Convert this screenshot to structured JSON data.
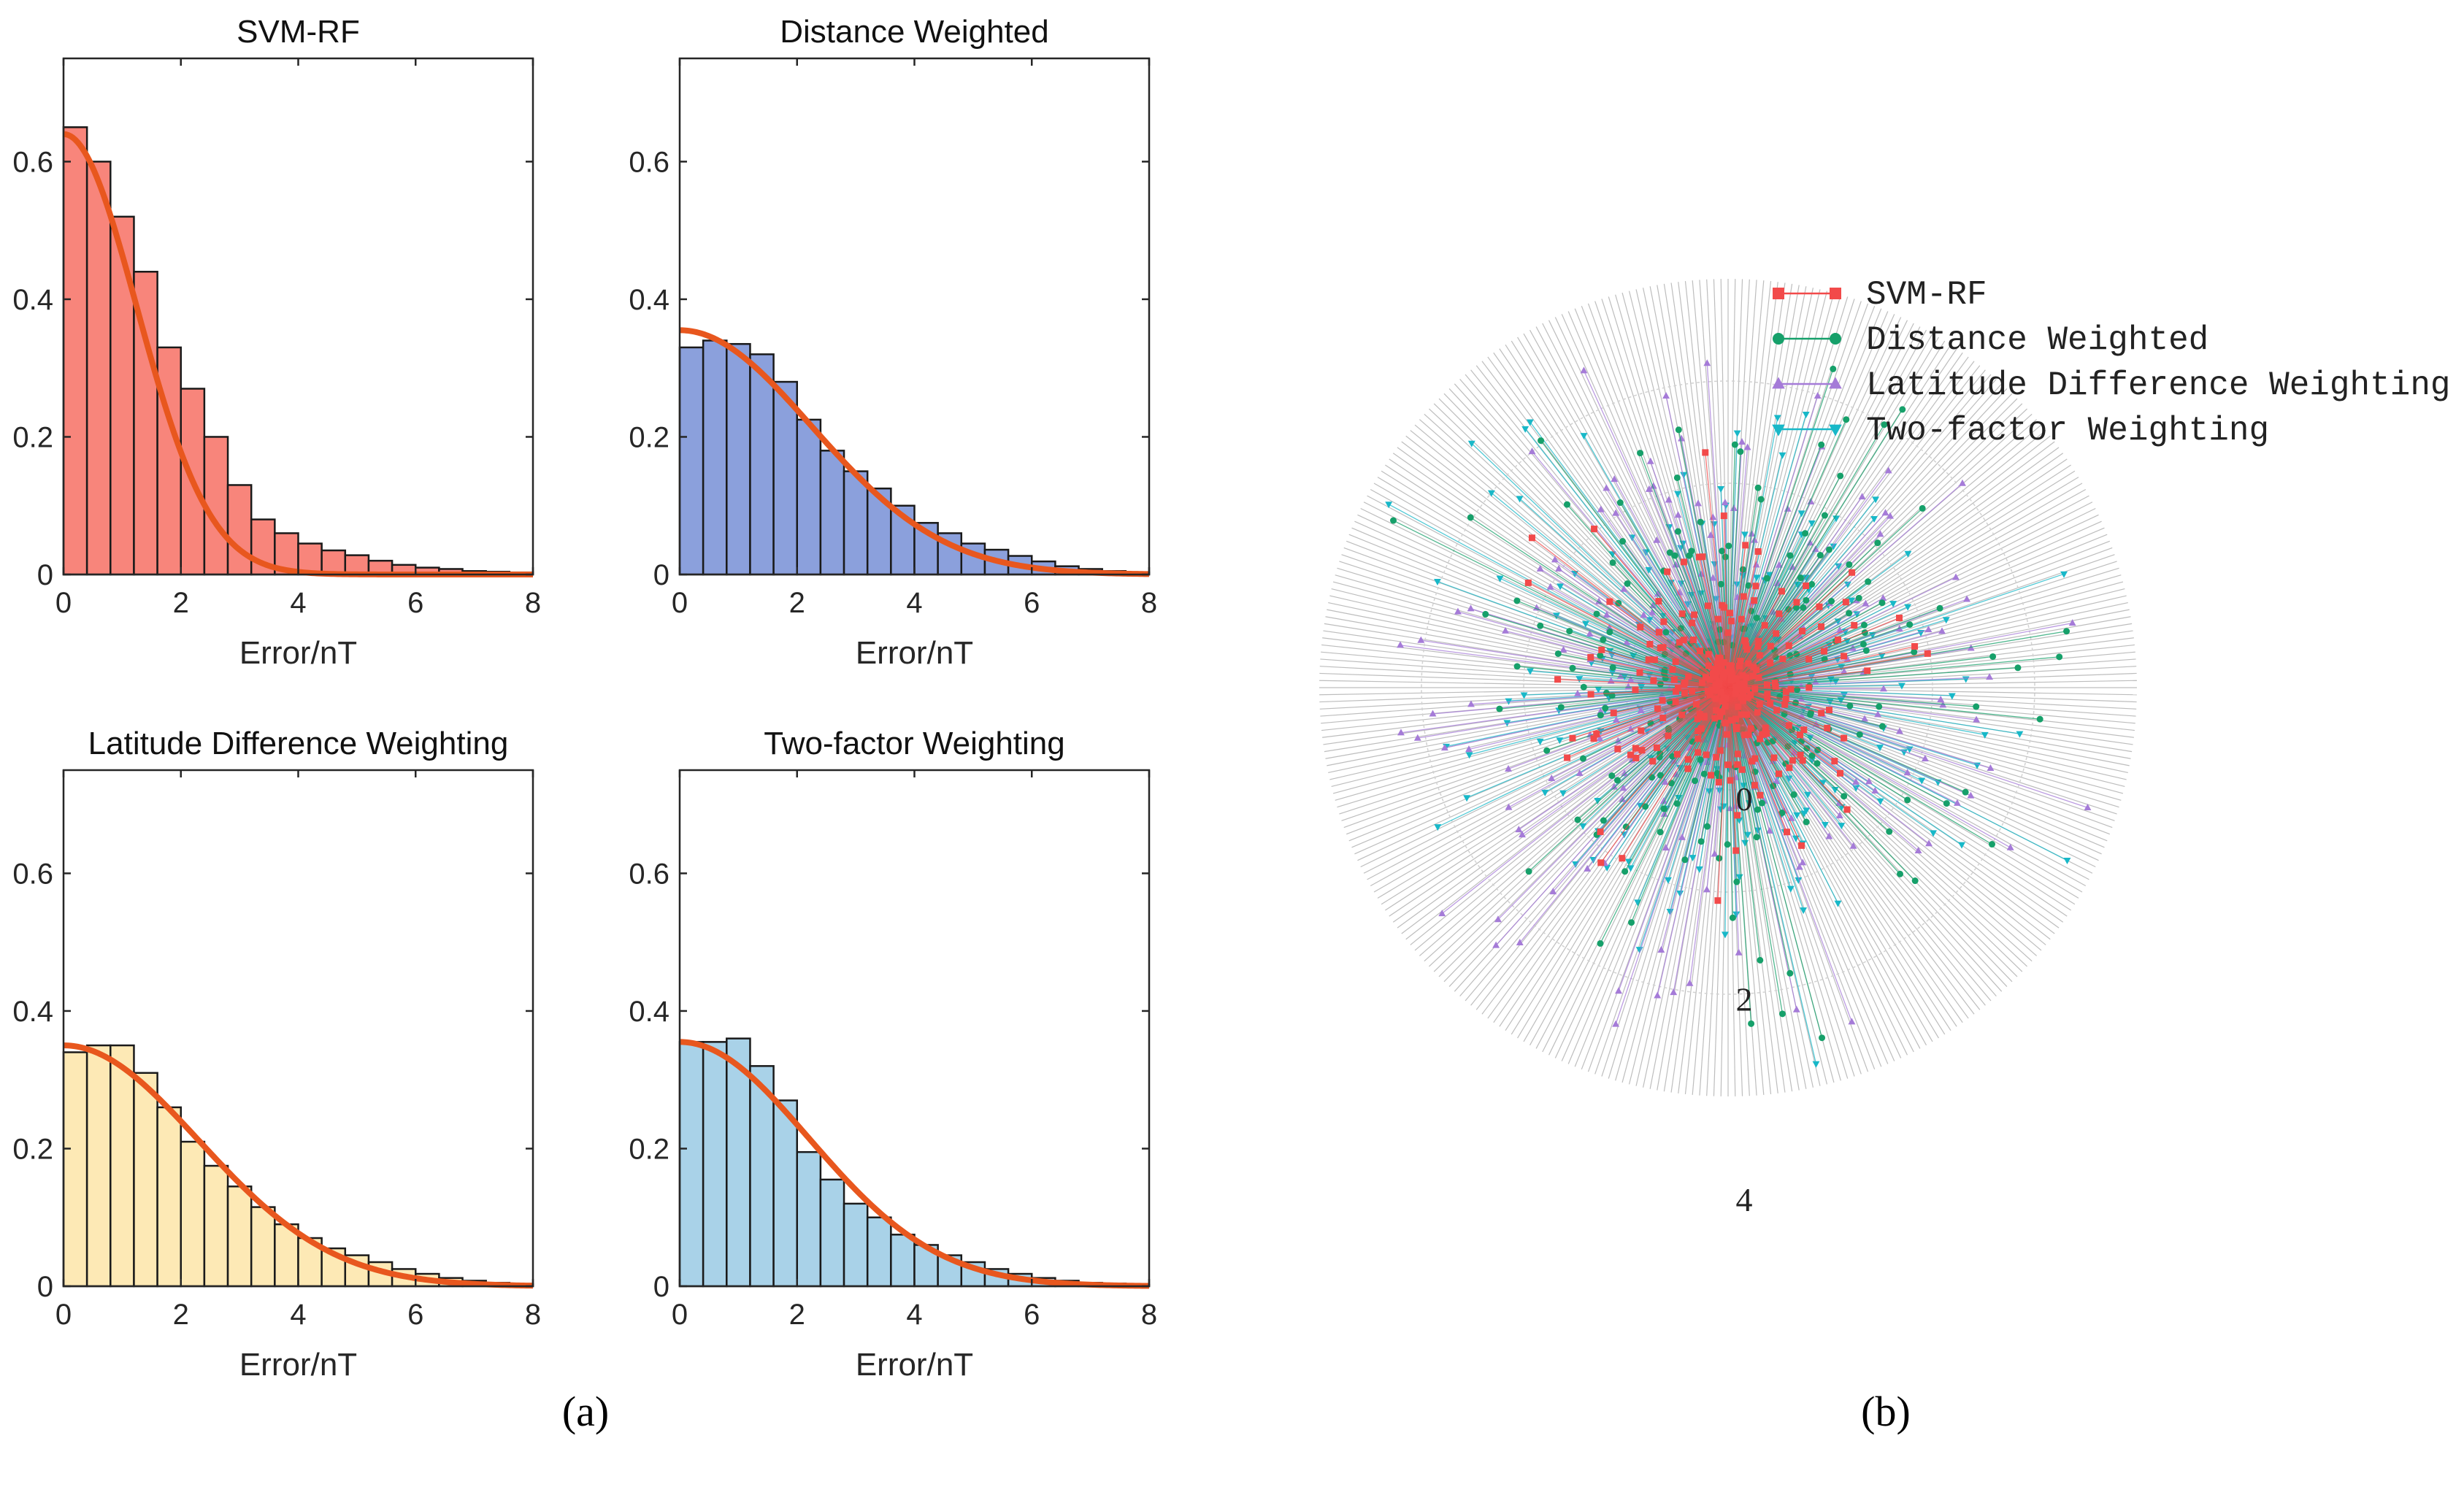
{
  "panel_labels": {
    "a": "(a)",
    "b": "(b)"
  },
  "chart_data": [
    {
      "type": "bar",
      "title": "SVM-RF",
      "xlabel": "Error/nT",
      "ylabel": "",
      "xlim": [
        0,
        8
      ],
      "ylim": [
        0,
        0.75
      ],
      "xticks": [
        0,
        2,
        4,
        6,
        8
      ],
      "yticks": [
        0,
        0.2,
        0.4,
        0.6
      ],
      "bin_width": 0.4,
      "values": [
        0.65,
        0.6,
        0.52,
        0.44,
        0.33,
        0.27,
        0.2,
        0.13,
        0.08,
        0.06,
        0.045,
        0.035,
        0.028,
        0.02,
        0.014,
        0.01,
        0.008,
        0.005,
        0.004,
        0.003
      ],
      "bar_color": "#f8857b",
      "fit_curve": {
        "type": "half-normal",
        "peak": 0.64,
        "sigma": 1.25,
        "color": "#e8571e"
      }
    },
    {
      "type": "bar",
      "title": "Distance Weighted",
      "xlabel": "Error/nT",
      "ylabel": "",
      "xlim": [
        0,
        8
      ],
      "ylim": [
        0,
        0.75
      ],
      "xticks": [
        0,
        2,
        4,
        6,
        8
      ],
      "yticks": [
        0,
        0.2,
        0.4,
        0.6
      ],
      "bin_width": 0.4,
      "values": [
        0.33,
        0.34,
        0.335,
        0.32,
        0.28,
        0.225,
        0.18,
        0.15,
        0.125,
        0.1,
        0.075,
        0.06,
        0.045,
        0.036,
        0.027,
        0.019,
        0.012,
        0.008,
        0.005,
        0.003
      ],
      "bar_color": "#8ba0dc",
      "fit_curve": {
        "type": "half-normal",
        "peak": 0.355,
        "sigma": 2.25,
        "color": "#e8571e"
      }
    },
    {
      "type": "bar",
      "title": "Latitude Difference Weighting",
      "xlabel": "Error/nT",
      "ylabel": "",
      "xlim": [
        0,
        8
      ],
      "ylim": [
        0,
        0.75
      ],
      "xticks": [
        0,
        2,
        4,
        6,
        8
      ],
      "yticks": [
        0,
        0.2,
        0.4,
        0.6
      ],
      "bin_width": 0.4,
      "values": [
        0.34,
        0.35,
        0.35,
        0.31,
        0.26,
        0.21,
        0.175,
        0.145,
        0.115,
        0.09,
        0.07,
        0.055,
        0.045,
        0.035,
        0.025,
        0.018,
        0.012,
        0.008,
        0.005,
        0.003
      ],
      "bar_color": "#fde9b5",
      "fit_curve": {
        "type": "half-normal",
        "peak": 0.35,
        "sigma": 2.3,
        "color": "#e8571e"
      }
    },
    {
      "type": "bar",
      "title": "Two-factor Weighting",
      "xlabel": "Error/nT",
      "ylabel": "",
      "xlim": [
        0,
        8
      ],
      "ylim": [
        0,
        0.75
      ],
      "xticks": [
        0,
        2,
        4,
        6,
        8
      ],
      "yticks": [
        0,
        0.2,
        0.4,
        0.6
      ],
      "bin_width": 0.4,
      "values": [
        0.355,
        0.355,
        0.36,
        0.32,
        0.27,
        0.195,
        0.155,
        0.12,
        0.1,
        0.075,
        0.06,
        0.045,
        0.035,
        0.025,
        0.018,
        0.012,
        0.008,
        0.005,
        0.004,
        0.002
      ],
      "bar_color": "#a9d2e8",
      "fit_curve": {
        "type": "half-normal",
        "peak": 0.355,
        "sigma": 2.2,
        "color": "#e8571e"
      }
    },
    {
      "type": "scatter",
      "subtype": "polar",
      "title": "",
      "r_ticks": [
        "0",
        "2",
        "4"
      ],
      "rlim": [
        0,
        4
      ],
      "legend_position": "top-right",
      "series": [
        {
          "name": "SVM-RF",
          "color": "#f24a4a",
          "marker": "square",
          "typical_error": 0.8
        },
        {
          "name": "Distance Weighted",
          "color": "#16a06a",
          "marker": "circle",
          "typical_error": 1.7
        },
        {
          "name": "Latitude Difference Weighting",
          "color": "#a57bd8",
          "marker": "triangle-up",
          "typical_error": 1.8
        },
        {
          "name": "Two-factor Weighting",
          "color": "#18b8c8",
          "marker": "triangle-down",
          "typical_error": 1.7
        }
      ]
    }
  ]
}
